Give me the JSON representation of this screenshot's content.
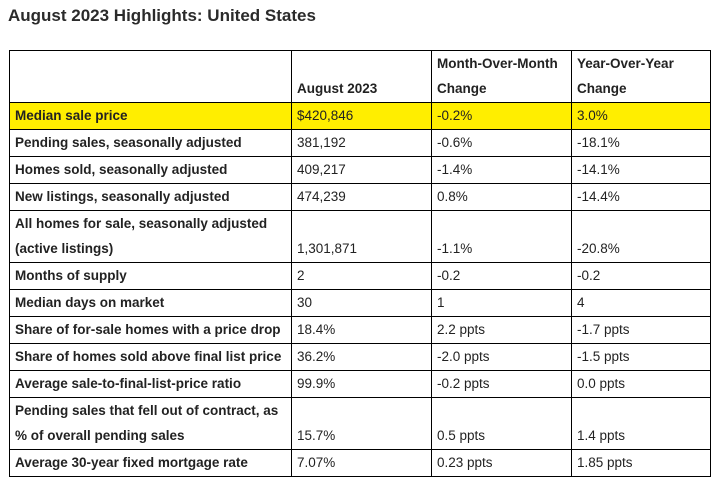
{
  "page": {
    "title": "August 2023 Highlights: United States"
  },
  "table": {
    "headers": [
      "",
      "August 2023",
      "Month-Over-Month Change",
      "Year-Over-Year Change"
    ],
    "rows": [
      {
        "metric": "Median sale price",
        "value": "$420,846",
        "mom": "-0.2%",
        "yoy": "3.0%",
        "highlighted": true
      },
      {
        "metric": "Pending sales, seasonally adjusted",
        "value": "381,192",
        "mom": "-0.6%",
        "yoy": "-18.1%"
      },
      {
        "metric": "Homes sold, seasonally adjusted",
        "value": "409,217",
        "mom": "-1.4%",
        "yoy": "-14.1%"
      },
      {
        "metric": "New listings, seasonally adjusted",
        "value": "474,239",
        "mom": "0.8%",
        "yoy": "-14.4%"
      },
      {
        "metric": "All homes for sale, seasonally adjusted (active listings)",
        "value": "1,301,871",
        "mom": "-1.1%",
        "yoy": "-20.8%"
      },
      {
        "metric": "Months of supply",
        "value": "2",
        "mom": "-0.2",
        "yoy": "-0.2"
      },
      {
        "metric": "Median days on market",
        "value": "30",
        "mom": "1",
        "yoy": "4"
      },
      {
        "metric": "Share of for-sale homes with a price drop",
        "value": "18.4%",
        "mom": "2.2 ppts",
        "yoy": "-1.7 ppts"
      },
      {
        "metric": "Share of homes sold above final list price",
        "value": "36.2%",
        "mom": "-2.0 ppts",
        "yoy": "-1.5 ppts"
      },
      {
        "metric": "Average sale-to-final-list-price ratio",
        "value": "99.9%",
        "mom": "-0.2 ppts",
        "yoy": "0.0 ppts"
      },
      {
        "metric": "Pending sales that fell out of contract, as % of overall pending sales",
        "value": "15.7%",
        "mom": "0.5 ppts",
        "yoy": "1.4 ppts"
      },
      {
        "metric": "Average 30-year fixed mortgage rate",
        "value": "7.07%",
        "mom": "0.23 ppts",
        "yoy": "1.85 ppts"
      }
    ]
  },
  "colors": {
    "highlight": "#ffee00",
    "border": "#000000"
  }
}
